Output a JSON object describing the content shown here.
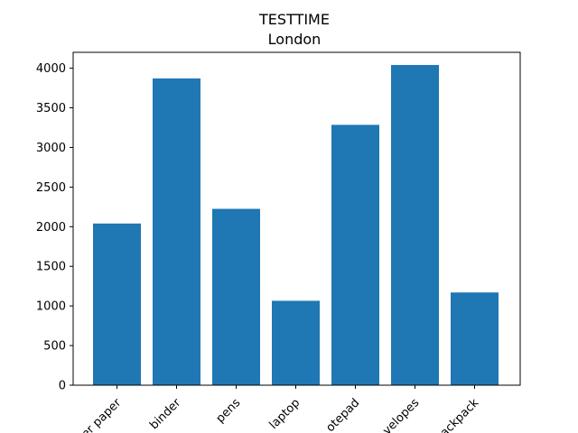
{
  "chart_data": {
    "type": "bar",
    "title": "TESTTIME",
    "subtitle": "London",
    "xlabel": "",
    "ylabel": "",
    "categories": [
      "paper",
      "binder",
      "pens",
      "laptop",
      "notepad",
      "envelopes",
      "backpack"
    ],
    "category_labels_visible": [
      "er paper",
      "binder",
      "pens",
      "laptop",
      "otepad",
      "velopes",
      "ackpack"
    ],
    "values": [
      2040,
      3870,
      2225,
      1065,
      3285,
      4040,
      1170
    ],
    "ylim": [
      0,
      4200
    ],
    "yticks": [
      0,
      500,
      1000,
      1500,
      2000,
      2500,
      3000,
      3500,
      4000
    ],
    "x_tick_rotation_deg": 45,
    "grid": false,
    "legend": "none",
    "bar_color": "#1f77b4"
  }
}
